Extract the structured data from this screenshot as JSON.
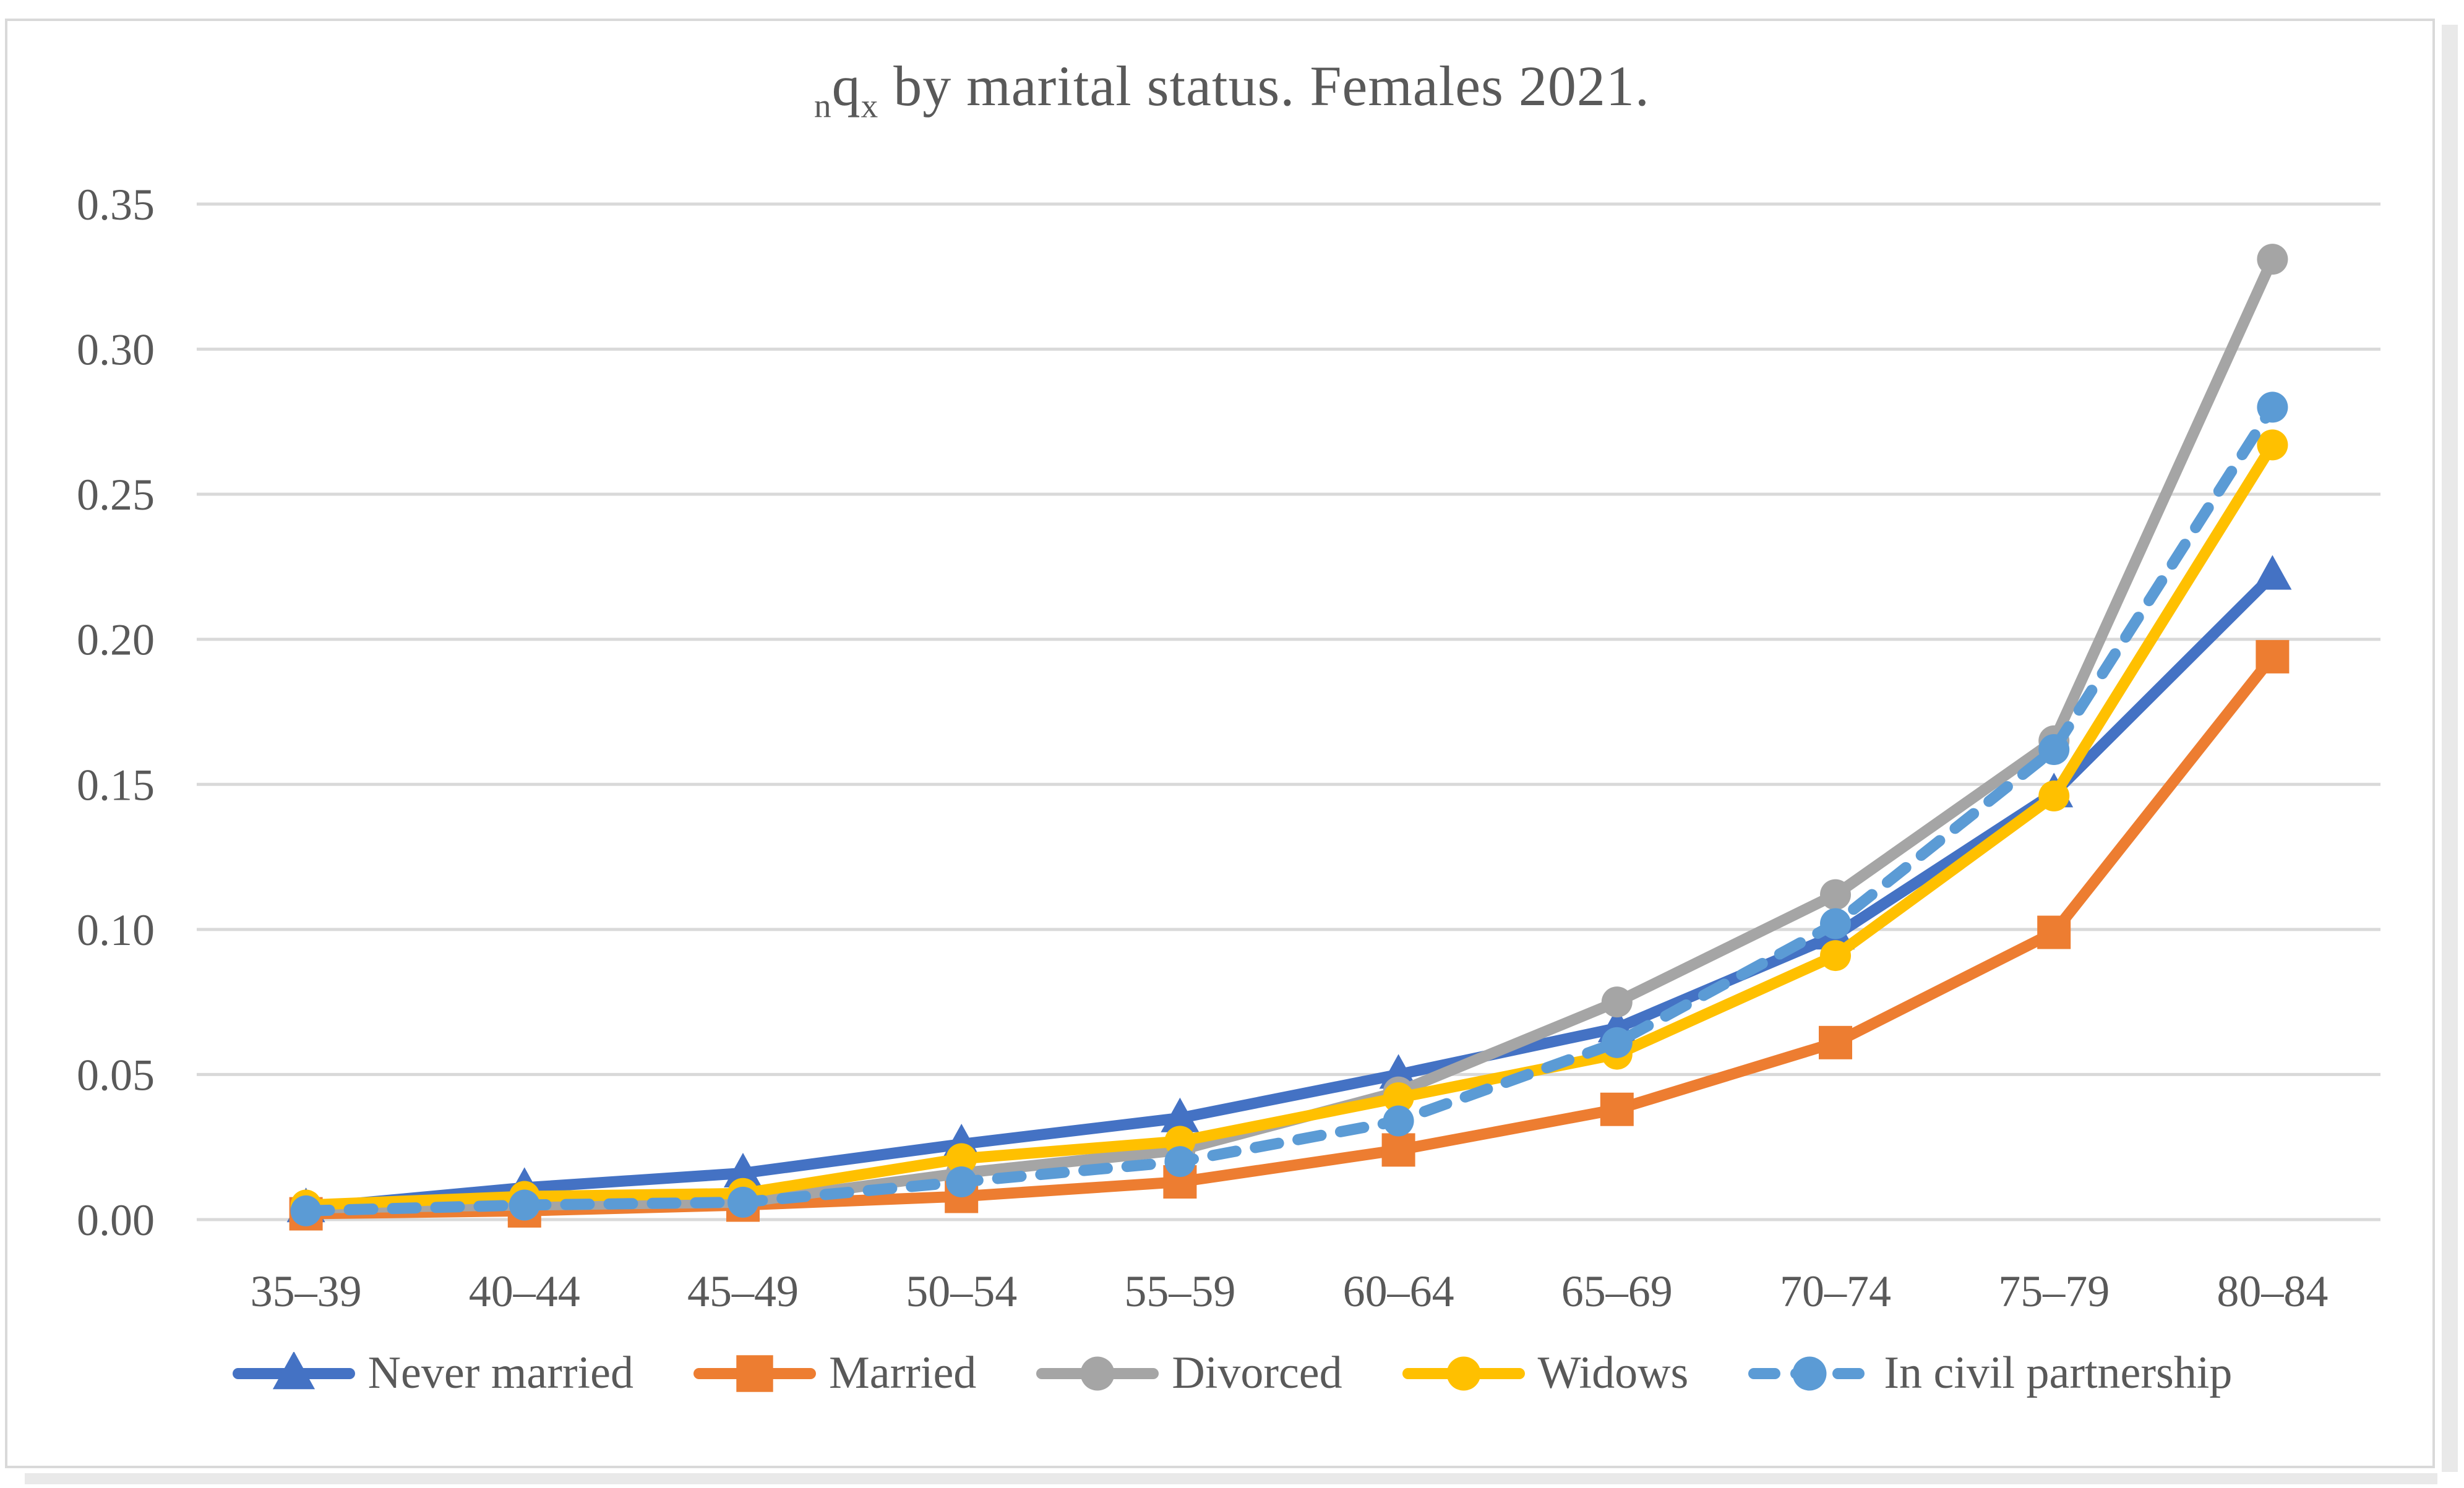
{
  "title": {
    "full": "nqx by marital status. Females 2021.",
    "parts": [
      "n",
      "q",
      "x",
      " by marital status. Females 2021."
    ]
  },
  "colors": {
    "text": "#595959",
    "gridline": "#D9D9D9",
    "frame": "#D9D9D9",
    "never_married": "#4472C4",
    "married": "#ED7D31",
    "divorced": "#A5A5A5",
    "widows": "#FFC000",
    "civil_partnership": "#5B9BD5"
  },
  "chart_data": {
    "type": "line",
    "title": "nqx by marital status. Females 2021.",
    "xlabel": "",
    "ylabel": "",
    "grid": true,
    "legend_position": "bottom",
    "ylim": [
      0,
      0.35
    ],
    "yticks": [
      0.0,
      0.05,
      0.1,
      0.15,
      0.2,
      0.25,
      0.3,
      0.35
    ],
    "ytick_labels": [
      "0.00",
      "0.05",
      "0.10",
      "0.15",
      "0.20",
      "0.25",
      "0.30",
      "0.35"
    ],
    "categories": [
      "35–39",
      "40–44",
      "45–49",
      "50–54",
      "55–59",
      "60–64",
      "65–69",
      "70–74",
      "75–79",
      "80–84"
    ],
    "series": [
      {
        "id": "never_married",
        "name": "Never married",
        "color": "#4472C4",
        "marker": "triangle",
        "dashed": false,
        "values": [
          0.004,
          0.011,
          0.016,
          0.026,
          0.035,
          0.05,
          0.066,
          0.098,
          0.147,
          0.222
        ]
      },
      {
        "id": "married",
        "name": "Married",
        "color": "#ED7D31",
        "marker": "square",
        "dashed": false,
        "values": [
          0.002,
          0.003,
          0.005,
          0.008,
          0.013,
          0.024,
          0.038,
          0.061,
          0.099,
          0.194
        ]
      },
      {
        "id": "divorced",
        "name": "Divorced",
        "color": "#A5A5A5",
        "marker": "circle",
        "dashed": false,
        "values": [
          0.004,
          0.005,
          0.006,
          0.016,
          0.024,
          0.044,
          0.075,
          0.112,
          0.165,
          0.331
        ]
      },
      {
        "id": "widows",
        "name": "Widows",
        "color": "#FFC000",
        "marker": "circle",
        "dashed": false,
        "values": [
          0.005,
          0.008,
          0.009,
          0.021,
          0.027,
          0.042,
          0.057,
          0.091,
          0.146,
          0.267
        ]
      },
      {
        "id": "civil_partnership",
        "name": "In civil partnership",
        "color": "#5B9BD5",
        "marker": "circle",
        "dashed": true,
        "values": [
          0.003,
          0.005,
          0.006,
          0.013,
          0.02,
          0.034,
          0.061,
          0.102,
          0.162,
          0.28
        ]
      }
    ]
  }
}
